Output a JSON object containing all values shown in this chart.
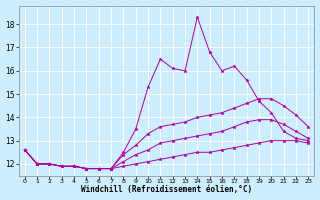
{
  "xlabel": "Windchill (Refroidissement éolien,°C)",
  "bg_color": "#cceeff",
  "grid_color": "#ffffff",
  "line_color": "#aa00aa",
  "xlim": [
    -0.5,
    23.5
  ],
  "ylim": [
    11.5,
    18.8
  ],
  "xticks": [
    0,
    1,
    2,
    3,
    4,
    5,
    6,
    7,
    8,
    9,
    10,
    11,
    12,
    13,
    14,
    15,
    16,
    17,
    18,
    19,
    20,
    21,
    22,
    23
  ],
  "yticks": [
    12,
    13,
    14,
    15,
    16,
    17,
    18
  ],
  "series1": [
    12.6,
    12.0,
    12.0,
    11.9,
    11.9,
    11.8,
    11.8,
    11.8,
    12.5,
    13.5,
    15.3,
    16.5,
    16.1,
    16.0,
    18.3,
    16.8,
    16.0,
    16.2,
    15.6,
    14.7,
    14.2,
    13.4,
    13.1,
    13.0
  ],
  "series2": [
    12.6,
    12.0,
    12.0,
    11.9,
    11.9,
    11.8,
    11.8,
    11.8,
    12.4,
    12.8,
    13.3,
    13.6,
    13.7,
    13.8,
    14.0,
    14.1,
    14.2,
    14.4,
    14.6,
    14.8,
    14.8,
    14.5,
    14.1,
    13.6
  ],
  "series3": [
    12.6,
    12.0,
    12.0,
    11.9,
    11.9,
    11.8,
    11.8,
    11.8,
    12.1,
    12.4,
    12.6,
    12.9,
    13.0,
    13.1,
    13.2,
    13.3,
    13.4,
    13.6,
    13.8,
    13.9,
    13.9,
    13.7,
    13.4,
    13.1
  ],
  "series4": [
    12.6,
    12.0,
    12.0,
    11.9,
    11.9,
    11.8,
    11.8,
    11.8,
    11.9,
    12.0,
    12.1,
    12.2,
    12.3,
    12.4,
    12.5,
    12.5,
    12.6,
    12.7,
    12.8,
    12.9,
    13.0,
    13.0,
    13.0,
    12.9
  ]
}
